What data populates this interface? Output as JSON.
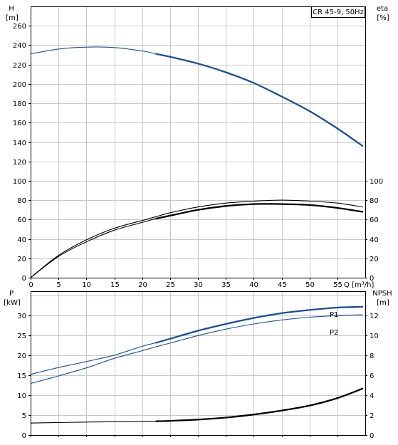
{
  "chart_data": [
    {
      "type": "line",
      "title": "CR 45-9, 50Hz",
      "xlabel": "Q [m³/h]",
      "xlim": [
        0,
        60
      ],
      "x_ticks": [
        0,
        5,
        10,
        15,
        20,
        25,
        30,
        35,
        40,
        45,
        50,
        55
      ],
      "left_axis": {
        "label_top": "H",
        "label_unit": "[m]",
        "ylim": [
          0,
          280
        ],
        "ticks": [
          0,
          20,
          40,
          60,
          80,
          100,
          120,
          140,
          160,
          180,
          200,
          220,
          240,
          260
        ]
      },
      "right_axis": {
        "label_top": "eta",
        "label_unit": "[%]",
        "ticks": [
          0,
          20,
          40,
          60,
          80,
          100
        ]
      },
      "grid": true,
      "series": [
        {
          "axis": "left",
          "color": "#1f4e8c",
          "points": [
            [
              0,
              231
            ],
            [
              5,
              236
            ],
            [
              10,
              238
            ],
            [
              15,
              237.5
            ],
            [
              20,
              234
            ],
            [
              22.5,
              231
            ],
            [
              25,
              228
            ],
            [
              30,
              221
            ],
            [
              35,
              212
            ],
            [
              40,
              201
            ],
            [
              45,
              187
            ],
            [
              50,
              172
            ],
            [
              55,
              154
            ],
            [
              59.5,
              136
            ]
          ],
          "highlight_from_x": 22.5
        },
        {
          "axis": "right",
          "color": "#000000",
          "points": [
            [
              0,
              0
            ],
            [
              5,
              23
            ],
            [
              10,
              39
            ],
            [
              15,
              51
            ],
            [
              20,
              59
            ],
            [
              22.5,
              63
            ],
            [
              25,
              67
            ],
            [
              30,
              73
            ],
            [
              35,
              77
            ],
            [
              40,
              79
            ],
            [
              45,
              80
            ],
            [
              50,
              79
            ],
            [
              55,
              77
            ],
            [
              59.5,
              73
            ]
          ],
          "highlight_from_x": 100
        },
        {
          "axis": "right",
          "color": "#000000",
          "points": [
            [
              0,
              0
            ],
            [
              5,
              22
            ],
            [
              10,
              37
            ],
            [
              15,
              49
            ],
            [
              20,
              57
            ],
            [
              22.5,
              61
            ],
            [
              25,
              64
            ],
            [
              30,
              70
            ],
            [
              35,
              74
            ],
            [
              40,
              76
            ],
            [
              45,
              76
            ],
            [
              50,
              75
            ],
            [
              55,
              72
            ],
            [
              59.5,
              68
            ]
          ],
          "highlight_from_x": 22.5
        }
      ]
    },
    {
      "type": "line",
      "xlim": [
        0,
        60
      ],
      "x_ticks": [
        0,
        5,
        10,
        15,
        20,
        25,
        30,
        35,
        40,
        45,
        50,
        55
      ],
      "left_axis": {
        "label_top": "P",
        "label_unit": "[kW]",
        "ylim": [
          0,
          36
        ],
        "ticks": [
          0,
          5,
          10,
          15,
          20,
          25,
          30
        ]
      },
      "right_axis": {
        "label_top": "NPSH",
        "label_unit": "[m]",
        "ylim": [
          0,
          14.4
        ],
        "ticks": [
          0,
          2,
          4,
          6,
          8,
          10,
          12
        ]
      },
      "grid": true,
      "series": [
        {
          "name": "P1",
          "axis": "left",
          "color": "#1f4e8c",
          "points": [
            [
              0,
              15.2
            ],
            [
              5,
              16.9
            ],
            [
              10,
              18.4
            ],
            [
              15,
              20
            ],
            [
              20,
              22.2
            ],
            [
              22.5,
              23.1
            ],
            [
              25,
              24.1
            ],
            [
              30,
              26.1
            ],
            [
              35,
              27.8
            ],
            [
              40,
              29.3
            ],
            [
              45,
              30.5
            ],
            [
              50,
              31.3
            ],
            [
              55,
              31.9
            ],
            [
              59.5,
              32.1
            ]
          ],
          "highlight_from_x": 22.5
        },
        {
          "name": "P2",
          "axis": "left",
          "color": "#1f4e8c",
          "points": [
            [
              0,
              12.9
            ],
            [
              5,
              14.8
            ],
            [
              10,
              16.8
            ],
            [
              15,
              19.2
            ],
            [
              20,
              21.1
            ],
            [
              22.5,
              22.1
            ],
            [
              25,
              23
            ],
            [
              30,
              24.9
            ],
            [
              35,
              26.5
            ],
            [
              40,
              27.8
            ],
            [
              45,
              28.8
            ],
            [
              50,
              29.5
            ],
            [
              55,
              29.9
            ],
            [
              59.5,
              30.1
            ]
          ],
          "highlight_from_x": 100
        },
        {
          "axis": "right",
          "color": "#000000",
          "points": [
            [
              0,
              1.2
            ],
            [
              5,
              1.25
            ],
            [
              10,
              1.3
            ],
            [
              15,
              1.33
            ],
            [
              20,
              1.36
            ],
            [
              22.5,
              1.38
            ],
            [
              25,
              1.42
            ],
            [
              30,
              1.55
            ],
            [
              35,
              1.75
            ],
            [
              40,
              2.05
            ],
            [
              45,
              2.45
            ],
            [
              50,
              2.95
            ],
            [
              55,
              3.7
            ],
            [
              59.5,
              4.65
            ]
          ],
          "highlight_from_x": 22.5
        }
      ]
    }
  ]
}
